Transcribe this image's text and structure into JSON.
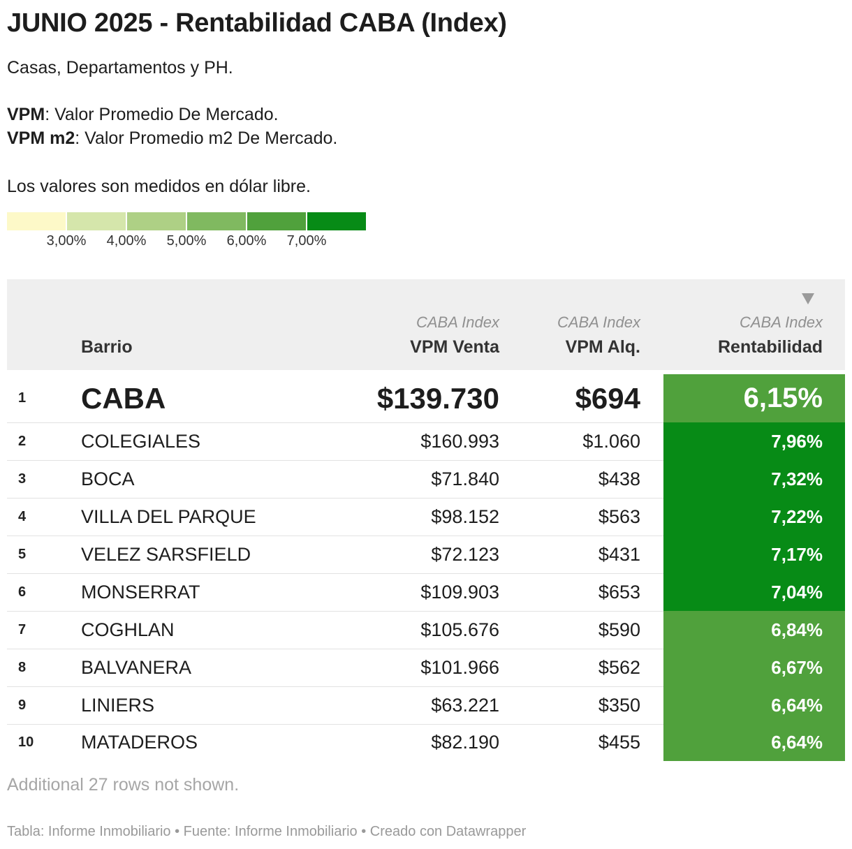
{
  "title": "JUNIO 2025 - Rentabilidad CABA (Index)",
  "subtitle": "Casas, Departamentos y PH.",
  "definitions": [
    {
      "term": "VPM",
      "text": ": Valor Promedio De Mercado."
    },
    {
      "term": "VPM m2",
      "text": ": Valor Promedio m2 De Mercado."
    }
  ],
  "currency_note": "Los valores son medidos en dólar libre.",
  "legend": {
    "colors": [
      "#fdf9c8",
      "#d5e6ab",
      "#aed085",
      "#80b960",
      "#50a13c",
      "#078b16"
    ],
    "labels": [
      "3,00%",
      "4,00%",
      "5,00%",
      "6,00%",
      "7,00%"
    ]
  },
  "table": {
    "headers": {
      "barrio": "Barrio",
      "venta_sup": "CABA Index",
      "venta": "VPM Venta",
      "alq_sup": "CABA Index",
      "alq": "VPM Alq.",
      "rent_sup": "CABA Index",
      "rent": "Rentabilidad"
    },
    "sort_icon": "sort-descending-icon",
    "rows": [
      {
        "rank": "1",
        "barrio": "CABA",
        "venta": "$139.730",
        "alq": "$694",
        "rent": "6,15%",
        "rent_value": 6.15,
        "rent_color": "#50a13c"
      },
      {
        "rank": "2",
        "barrio": "COLEGIALES",
        "venta": "$160.993",
        "alq": "$1.060",
        "rent": "7,96%",
        "rent_value": 7.96,
        "rent_color": "#078b16"
      },
      {
        "rank": "3",
        "barrio": "BOCA",
        "venta": "$71.840",
        "alq": "$438",
        "rent": "7,32%",
        "rent_value": 7.32,
        "rent_color": "#078b16"
      },
      {
        "rank": "4",
        "barrio": "VILLA DEL PARQUE",
        "venta": "$98.152",
        "alq": "$563",
        "rent": "7,22%",
        "rent_value": 7.22,
        "rent_color": "#078b16"
      },
      {
        "rank": "5",
        "barrio": "VELEZ SARSFIELD",
        "venta": "$72.123",
        "alq": "$431",
        "rent": "7,17%",
        "rent_value": 7.17,
        "rent_color": "#078b16"
      },
      {
        "rank": "6",
        "barrio": "MONSERRAT",
        "venta": "$109.903",
        "alq": "$653",
        "rent": "7,04%",
        "rent_value": 7.04,
        "rent_color": "#078b16"
      },
      {
        "rank": "7",
        "barrio": "COGHLAN",
        "venta": "$105.676",
        "alq": "$590",
        "rent": "6,84%",
        "rent_value": 6.84,
        "rent_color": "#50a13c"
      },
      {
        "rank": "8",
        "barrio": "BALVANERA",
        "venta": "$101.966",
        "alq": "$562",
        "rent": "6,67%",
        "rent_value": 6.67,
        "rent_color": "#50a13c"
      },
      {
        "rank": "9",
        "barrio": "LINIERS",
        "venta": "$63.221",
        "alq": "$350",
        "rent": "6,64%",
        "rent_value": 6.64,
        "rent_color": "#50a13c"
      },
      {
        "rank": "10",
        "barrio": "MATADEROS",
        "venta": "$82.190",
        "alq": "$455",
        "rent": "6,64%",
        "rent_value": 6.64,
        "rent_color": "#50a13c"
      }
    ]
  },
  "note": "Additional 27 rows not shown.",
  "footer": "Tabla: Informe Inmobiliario • Fuente: Informe Inmobiliario • Creado con Datawrapper"
}
